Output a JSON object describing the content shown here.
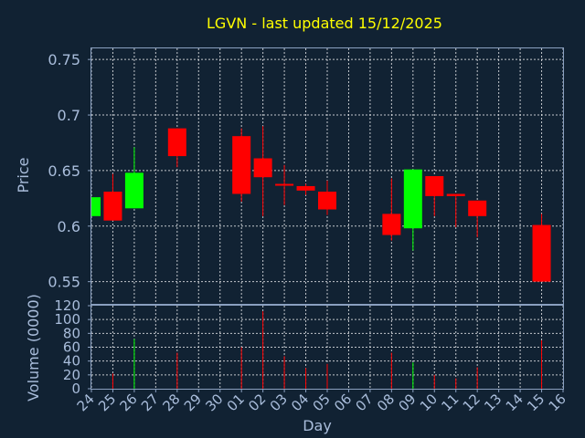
{
  "chart_data": {
    "type": "candlestick",
    "title": "LGVN - last updated 15/12/2025",
    "xlabel": "Day",
    "x_ticks": [
      "24",
      "25",
      "26",
      "27",
      "28",
      "29",
      "30",
      "01",
      "02",
      "03",
      "04",
      "05",
      "06",
      "07",
      "08",
      "09",
      "10",
      "11",
      "12",
      "13",
      "14",
      "15",
      "16"
    ],
    "price_panel": {
      "ylabel": "Price",
      "ylim": [
        0.53,
        0.76
      ],
      "y_ticks": [
        "0.55",
        "0.6",
        "0.65",
        "0.7",
        "0.75"
      ],
      "y_tick_values": [
        0.55,
        0.6,
        0.65,
        0.7,
        0.75
      ],
      "grid": true
    },
    "volume_panel": {
      "ylabel": "Volume (0000)",
      "ylim": [
        0,
        120
      ],
      "y_ticks": [
        "0",
        "20",
        "40",
        "60",
        "80",
        "100",
        "120"
      ],
      "y_tick_values": [
        0,
        20,
        40,
        60,
        80,
        100,
        120
      ],
      "grid": true
    },
    "candles": [
      {
        "day": "24",
        "open": 0.609,
        "close": 0.626,
        "high": 0.626,
        "low": 0.609,
        "volume": 0
      },
      {
        "day": "25",
        "open": 0.631,
        "close": 0.605,
        "high": 0.647,
        "low": 0.605,
        "volume": 22
      },
      {
        "day": "26",
        "open": 0.616,
        "close": 0.648,
        "high": 0.671,
        "low": 0.616,
        "volume": 72
      },
      {
        "day": "28",
        "open": 0.688,
        "close": 0.663,
        "high": 0.688,
        "low": 0.653,
        "volume": 52
      },
      {
        "day": "01",
        "open": 0.681,
        "close": 0.629,
        "high": 0.688,
        "low": 0.622,
        "volume": 60
      },
      {
        "day": "02",
        "open": 0.661,
        "close": 0.644,
        "high": 0.69,
        "low": 0.609,
        "volume": 112
      },
      {
        "day": "03",
        "open": 0.638,
        "close": 0.637,
        "high": 0.655,
        "low": 0.619,
        "volume": 47
      },
      {
        "day": "04",
        "open": 0.636,
        "close": 0.632,
        "high": 0.638,
        "low": 0.628,
        "volume": 30
      },
      {
        "day": "05",
        "open": 0.631,
        "close": 0.615,
        "high": 0.641,
        "low": 0.61,
        "volume": 36
      },
      {
        "day": "08",
        "open": 0.611,
        "close": 0.592,
        "high": 0.643,
        "low": 0.587,
        "volume": 52
      },
      {
        "day": "09",
        "open": 0.598,
        "close": 0.651,
        "high": 0.651,
        "low": 0.578,
        "volume": 38
      },
      {
        "day": "10",
        "open": 0.645,
        "close": 0.627,
        "high": 0.645,
        "low": 0.609,
        "volume": 20
      },
      {
        "day": "11",
        "open": 0.629,
        "close": 0.627,
        "high": 0.629,
        "low": 0.599,
        "volume": 15
      },
      {
        "day": "12",
        "open": 0.623,
        "close": 0.609,
        "high": 0.623,
        "low": 0.59,
        "volume": 31
      },
      {
        "day": "15",
        "open": 0.601,
        "close": 0.55,
        "high": 0.611,
        "low": 0.55,
        "volume": 70
      }
    ],
    "colors": {
      "background": "#112233",
      "up": "#00ff00",
      "down": "#ff0000",
      "grid": "#ffffff",
      "frame": "#8aa0c0",
      "labels": "#a9bddb",
      "title": "#ffff00"
    }
  }
}
